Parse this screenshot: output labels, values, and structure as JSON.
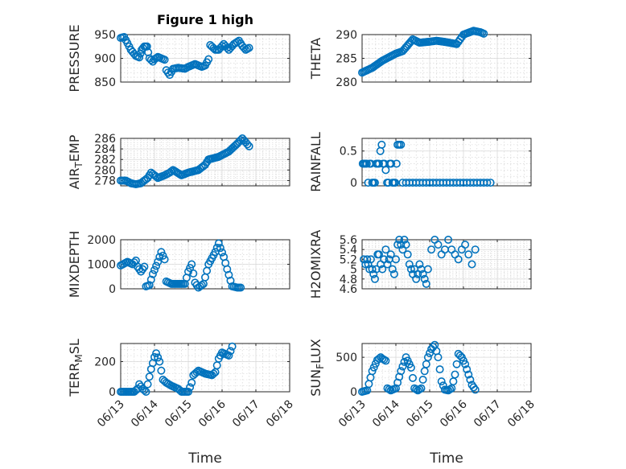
{
  "figure_title": "Figure 1 high",
  "colors": {
    "marker": "#0072BD",
    "axis": "#262626",
    "grid": "#d9d9d9"
  },
  "x_ticks": [
    "06/13",
    "06/14",
    "06/15",
    "06/16",
    "06/17",
    "06/18"
  ],
  "x_axis_label": "Time",
  "chart_data": [
    {
      "type": "scatter",
      "id": "pressure",
      "title": "Figure 1 high",
      "ylabel": "PRESSURE",
      "ylabel_parts": [
        "PRESSURE"
      ],
      "ylim": [
        850,
        950
      ],
      "yticks": [
        850,
        900,
        950
      ],
      "xlim": [
        0,
        5
      ],
      "grid": true,
      "anchors": [
        [
          0,
          943
        ],
        [
          0.1,
          945
        ],
        [
          0.2,
          932
        ],
        [
          0.3,
          918
        ],
        [
          0.45,
          905
        ],
        [
          0.55,
          902
        ],
        [
          0.62,
          918
        ],
        [
          0.7,
          925
        ],
        [
          0.78,
          925
        ],
        [
          0.85,
          900
        ],
        [
          0.95,
          893
        ],
        [
          1.0,
          898
        ],
        [
          1.1,
          903
        ],
        [
          1.2,
          900
        ],
        [
          1.3,
          897
        ],
        [
          1.35,
          875
        ],
        [
          1.45,
          865
        ],
        [
          1.55,
          878
        ],
        [
          1.7,
          880
        ],
        [
          1.9,
          878
        ],
        [
          2.0,
          882
        ],
        [
          2.2,
          888
        ],
        [
          2.4,
          882
        ],
        [
          2.5,
          885
        ],
        [
          2.6,
          898
        ],
        [
          2.65,
          928
        ],
        [
          2.8,
          918
        ],
        [
          2.9,
          918
        ],
        [
          3.05,
          930
        ],
        [
          3.2,
          918
        ],
        [
          3.35,
          930
        ],
        [
          3.5,
          937
        ],
        [
          3.6,
          926
        ],
        [
          3.7,
          918
        ],
        [
          3.8,
          922
        ]
      ]
    },
    {
      "type": "scatter",
      "id": "theta",
      "ylabel": "THETA",
      "ylabel_parts": [
        "THETA"
      ],
      "ylim": [
        280,
        290
      ],
      "yticks": [
        280,
        285,
        290
      ],
      "xlim": [
        0,
        5
      ],
      "grid": true,
      "anchors": [
        [
          0,
          282
        ],
        [
          0.3,
          283
        ],
        [
          0.6,
          284.5
        ],
        [
          1.0,
          286
        ],
        [
          1.2,
          286.5
        ],
        [
          1.5,
          289
        ],
        [
          1.7,
          288.3
        ],
        [
          2.0,
          288.5
        ],
        [
          2.2,
          288.7
        ],
        [
          2.5,
          288.4
        ],
        [
          2.8,
          288
        ],
        [
          3.0,
          290
        ],
        [
          3.3,
          290.8
        ],
        [
          3.5,
          290.5
        ],
        [
          3.6,
          290.2
        ]
      ]
    },
    {
      "type": "scatter",
      "id": "air_temp",
      "ylabel": "AIR_TEMP",
      "ylabel_parts": [
        "AIR",
        "T",
        "EMP"
      ],
      "ylim": [
        277,
        286
      ],
      "yticks": [
        278,
        280,
        282,
        284,
        286
      ],
      "xlim": [
        0,
        5
      ],
      "grid": true,
      "anchors": [
        [
          0,
          278
        ],
        [
          0.15,
          278
        ],
        [
          0.3,
          277.5
        ],
        [
          0.45,
          277.3
        ],
        [
          0.6,
          277.5
        ],
        [
          0.8,
          278.5
        ],
        [
          0.9,
          279.5
        ],
        [
          1.1,
          278.5
        ],
        [
          1.3,
          279
        ],
        [
          1.45,
          279.5
        ],
        [
          1.55,
          280
        ],
        [
          1.8,
          279
        ],
        [
          2.0,
          279.5
        ],
        [
          2.3,
          280
        ],
        [
          2.5,
          281
        ],
        [
          2.6,
          282
        ],
        [
          2.9,
          282.5
        ],
        [
          3.2,
          283.5
        ],
        [
          3.45,
          285
        ],
        [
          3.6,
          286
        ],
        [
          3.8,
          284.5
        ]
      ]
    },
    {
      "type": "scatter",
      "id": "rainfall",
      "ylabel": "RAINFALL",
      "ylabel_parts": [
        "RAINFALL"
      ],
      "ylim": [
        -0.05,
        0.7
      ],
      "yticks": [
        0,
        0.5
      ],
      "xlim": [
        0,
        5
      ],
      "grid": true,
      "points": [
        [
          0.02,
          0.3
        ],
        [
          0.06,
          0.3
        ],
        [
          0.1,
          0.3
        ],
        [
          0.14,
          0.3
        ],
        [
          0.18,
          0
        ],
        [
          0.22,
          0.3
        ],
        [
          0.26,
          0.3
        ],
        [
          0.3,
          0
        ],
        [
          0.34,
          0
        ],
        [
          0.38,
          0
        ],
        [
          0.42,
          0.3
        ],
        [
          0.46,
          0.3
        ],
        [
          0.5,
          0.3
        ],
        [
          0.54,
          0.5
        ],
        [
          0.58,
          0.6
        ],
        [
          0.62,
          0.3
        ],
        [
          0.66,
          0.3
        ],
        [
          0.7,
          0.2
        ],
        [
          0.74,
          0
        ],
        [
          0.78,
          0
        ],
        [
          0.82,
          0.3
        ],
        [
          0.86,
          0.3
        ],
        [
          0.9,
          0
        ],
        [
          0.94,
          0
        ],
        [
          0.98,
          0
        ],
        [
          1.02,
          0.3
        ],
        [
          1.05,
          0.6
        ],
        [
          1.1,
          0.6
        ],
        [
          1.15,
          0.6
        ],
        [
          1.2,
          0
        ],
        [
          1.3,
          0
        ],
        [
          1.4,
          0
        ],
        [
          1.5,
          0
        ],
        [
          1.6,
          0
        ],
        [
          1.7,
          0
        ],
        [
          1.8,
          0
        ],
        [
          1.9,
          0
        ],
        [
          2.0,
          0
        ],
        [
          2.1,
          0
        ],
        [
          2.2,
          0
        ],
        [
          2.3,
          0
        ],
        [
          2.4,
          0
        ],
        [
          2.5,
          0
        ],
        [
          2.6,
          0
        ],
        [
          2.7,
          0
        ],
        [
          2.8,
          0
        ],
        [
          2.9,
          0
        ],
        [
          3.0,
          0
        ],
        [
          3.1,
          0
        ],
        [
          3.2,
          0
        ],
        [
          3.3,
          0
        ],
        [
          3.4,
          0
        ],
        [
          3.5,
          0
        ],
        [
          3.6,
          0
        ],
        [
          3.7,
          0
        ],
        [
          3.8,
          0
        ]
      ]
    },
    {
      "type": "scatter",
      "id": "mixdepth",
      "ylabel": "MIXDEPTH",
      "ylabel_parts": [
        "MIXDEPTH"
      ],
      "ylim": [
        0,
        2000
      ],
      "yticks": [
        0,
        1000,
        2000
      ],
      "xlim": [
        0,
        5
      ],
      "grid": true,
      "anchors": [
        [
          0,
          950
        ],
        [
          0.2,
          1100
        ],
        [
          0.35,
          1000
        ],
        [
          0.45,
          1150
        ],
        [
          0.5,
          900
        ],
        [
          0.6,
          700
        ],
        [
          0.7,
          900
        ],
        [
          0.75,
          100
        ],
        [
          0.85,
          150
        ],
        [
          0.95,
          600
        ],
        [
          1.1,
          1100
        ],
        [
          1.2,
          1500
        ],
        [
          1.3,
          1200
        ],
        [
          1.35,
          300
        ],
        [
          1.5,
          200
        ],
        [
          1.8,
          200
        ],
        [
          1.9,
          200
        ],
        [
          2.0,
          700
        ],
        [
          2.1,
          1000
        ],
        [
          2.2,
          250
        ],
        [
          2.3,
          50
        ],
        [
          2.45,
          200
        ],
        [
          2.6,
          1000
        ],
        [
          2.8,
          1500
        ],
        [
          2.9,
          1850
        ],
        [
          3.05,
          1300
        ],
        [
          3.15,
          800
        ],
        [
          3.3,
          100
        ],
        [
          3.45,
          50
        ],
        [
          3.55,
          50
        ]
      ]
    },
    {
      "type": "scatter",
      "id": "h2omixra",
      "ylabel": "H2OMIXRA",
      "ylabel_parts": [
        "H2OMIXRA"
      ],
      "ylim": [
        4.6,
        5.6
      ],
      "yticks": [
        4.6,
        4.8,
        5,
        5.2,
        5.4,
        5.6
      ],
      "ytick_labels": [
        "4.6",
        "4.8",
        "5",
        "5.2",
        "5.4",
        "5.6"
      ],
      "xlim": [
        0,
        5
      ],
      "grid": true,
      "points": [
        [
          0.05,
          5.2
        ],
        [
          0.1,
          5.1
        ],
        [
          0.15,
          5.2
        ],
        [
          0.18,
          5.1
        ],
        [
          0.22,
          5
        ],
        [
          0.26,
          5.2
        ],
        [
          0.3,
          5.0
        ],
        [
          0.34,
          4.9
        ],
        [
          0.38,
          4.8
        ],
        [
          0.42,
          5.0
        ],
        [
          0.46,
          5.3
        ],
        [
          0.5,
          5.3
        ],
        [
          0.55,
          5.1
        ],
        [
          0.6,
          5.0
        ],
        [
          0.65,
          5.2
        ],
        [
          0.7,
          5.4
        ],
        [
          0.75,
          5.1
        ],
        [
          0.8,
          5.2
        ],
        [
          0.85,
          5.3
        ],
        [
          0.9,
          5.0
        ],
        [
          0.95,
          4.9
        ],
        [
          1.0,
          5.2
        ],
        [
          1.05,
          5.5
        ],
        [
          1.1,
          5.6
        ],
        [
          1.15,
          5.5
        ],
        [
          1.2,
          5.4
        ],
        [
          1.25,
          5.6
        ],
        [
          1.3,
          5.5
        ],
        [
          1.35,
          5.3
        ],
        [
          1.4,
          5.1
        ],
        [
          1.45,
          5.0
        ],
        [
          1.5,
          4.9
        ],
        [
          1.55,
          5.0
        ],
        [
          1.6,
          4.8
        ],
        [
          1.65,
          4.9
        ],
        [
          1.7,
          5.1
        ],
        [
          1.75,
          5.0
        ],
        [
          1.8,
          4.9
        ],
        [
          1.85,
          4.8
        ],
        [
          1.9,
          4.7
        ],
        [
          1.95,
          5.0
        ],
        [
          2.05,
          5.4
        ],
        [
          2.15,
          5.6
        ],
        [
          2.25,
          5.5
        ],
        [
          2.35,
          5.3
        ],
        [
          2.45,
          5.4
        ],
        [
          2.55,
          5.6
        ],
        [
          2.65,
          5.4
        ],
        [
          2.75,
          5.3
        ],
        [
          2.85,
          5.2
        ],
        [
          2.95,
          5.4
        ],
        [
          3.05,
          5.5
        ],
        [
          3.15,
          5.3
        ],
        [
          3.25,
          5.1
        ],
        [
          3.35,
          5.4
        ]
      ]
    },
    {
      "type": "scatter",
      "id": "terr_msl",
      "ylabel": "TERR_MSL",
      "ylabel_parts": [
        "TERR",
        "M",
        "SL"
      ],
      "ylim": [
        0,
        320
      ],
      "yticks": [
        0,
        200
      ],
      "xlim": [
        0,
        5
      ],
      "grid": true,
      "show_xticks": true,
      "anchors": [
        [
          0,
          0
        ],
        [
          0.4,
          0
        ],
        [
          0.5,
          20
        ],
        [
          0.55,
          50
        ],
        [
          0.65,
          20
        ],
        [
          0.75,
          0
        ],
        [
          0.9,
          150
        ],
        [
          1.0,
          230
        ],
        [
          1.05,
          255
        ],
        [
          1.15,
          200
        ],
        [
          1.25,
          80
        ],
        [
          1.35,
          60
        ],
        [
          1.5,
          40
        ],
        [
          1.7,
          20
        ],
        [
          1.8,
          0
        ],
        [
          2.0,
          0
        ],
        [
          2.1,
          60
        ],
        [
          2.15,
          110
        ],
        [
          2.3,
          140
        ],
        [
          2.5,
          120
        ],
        [
          2.7,
          110
        ],
        [
          2.8,
          130
        ],
        [
          2.9,
          220
        ],
        [
          3.0,
          260
        ],
        [
          3.2,
          240
        ],
        [
          3.3,
          300
        ]
      ]
    },
    {
      "type": "scatter",
      "id": "sun_flux",
      "ylabel": "SUN_FLUX",
      "ylabel_parts": [
        "SUN",
        "F",
        "LUX"
      ],
      "ylim": [
        0,
        700
      ],
      "yticks": [
        0,
        500
      ],
      "xlim": [
        0,
        5
      ],
      "grid": true,
      "show_xticks": true,
      "anchors": [
        [
          0,
          0
        ],
        [
          0.15,
          20
        ],
        [
          0.3,
          300
        ],
        [
          0.45,
          460
        ],
        [
          0.55,
          500
        ],
        [
          0.6,
          480
        ],
        [
          0.7,
          450
        ],
        [
          0.75,
          50
        ],
        [
          0.85,
          20
        ],
        [
          1.0,
          50
        ],
        [
          1.15,
          300
        ],
        [
          1.3,
          500
        ],
        [
          1.45,
          350
        ],
        [
          1.55,
          50
        ],
        [
          1.65,
          20
        ],
        [
          1.75,
          50
        ],
        [
          1.85,
          300
        ],
        [
          1.95,
          500
        ],
        [
          2.05,
          620
        ],
        [
          2.15,
          680
        ],
        [
          2.25,
          500
        ],
        [
          2.35,
          150
        ],
        [
          2.45,
          30
        ],
        [
          2.55,
          20
        ],
        [
          2.65,
          50
        ],
        [
          2.75,
          250
        ],
        [
          2.85,
          550
        ],
        [
          2.95,
          500
        ],
        [
          3.05,
          400
        ],
        [
          3.15,
          250
        ],
        [
          3.25,
          100
        ],
        [
          3.35,
          30
        ]
      ]
    }
  ]
}
